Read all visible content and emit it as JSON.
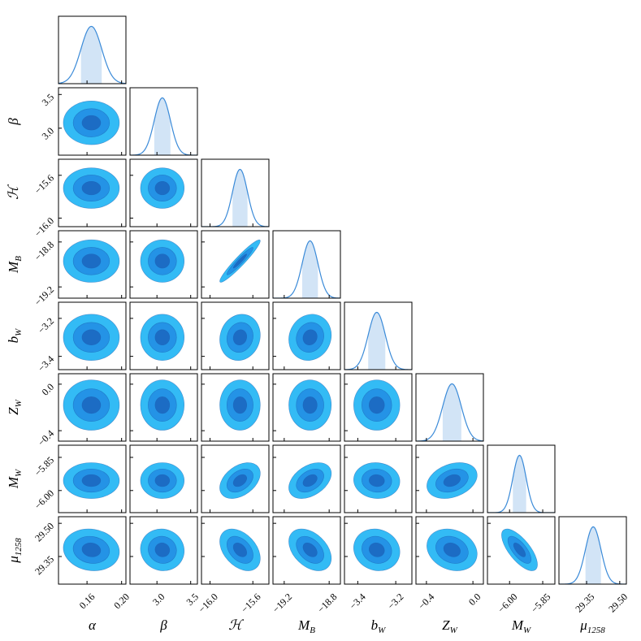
{
  "chart_data": {
    "type": "corner",
    "params": [
      {
        "label": "α",
        "xlim": [
          0.127,
          0.205
        ],
        "ticks": [
          0.16,
          {
            "value": 0.2,
            "label": "0.20"
          }
        ],
        "mean": 0.165,
        "sigma": 0.012
      },
      {
        "label": "β",
        "xlim": [
          2.6,
          3.6
        ],
        "ticks": [
          {
            "value": 3.0,
            "label": "3.0"
          },
          3.5
        ],
        "mean": 3.08,
        "sigma": 0.12
      },
      {
        "label": "ℋ",
        "xlim": [
          -16.08,
          -15.45
        ],
        "ticks": [
          {
            "value": -16.0,
            "label": "−16.0"
          },
          {
            "value": -15.6,
            "label": "−15.6"
          }
        ],
        "mean": -15.72,
        "sigma": 0.07
      },
      {
        "label": "M",
        "sub": "B",
        "xlim": [
          -19.3,
          -18.7
        ],
        "ticks": [
          {
            "value": -19.2,
            "label": "−19.2"
          },
          {
            "value": -18.8,
            "label": "−18.8"
          }
        ],
        "mean": -18.97,
        "sigma": 0.07
      },
      {
        "label": "b",
        "sub": "W",
        "xlim": [
          -3.47,
          -3.115
        ],
        "ticks": [
          {
            "value": -3.4,
            "label": "−3.4"
          },
          {
            "value": -3.2,
            "label": "−3.2"
          }
        ],
        "mean": -3.3,
        "sigma": 0.045
      },
      {
        "label": "Z",
        "sub": "W",
        "xlim": [
          -0.49,
          0.09
        ],
        "ticks": [
          {
            "value": -0.4,
            "label": "−0.4"
          },
          {
            "value": 0.0,
            "label": "0.0"
          }
        ],
        "mean": -0.18,
        "sigma": 0.08
      },
      {
        "label": "M",
        "sub": "W",
        "xlim": [
          -6.1,
          -5.795
        ],
        "ticks": [
          {
            "value": -6.0,
            "label": "−6.00"
          },
          {
            "value": -5.85,
            "label": "−5.85"
          }
        ],
        "mean": -5.955,
        "sigma": 0.03
      },
      {
        "label": "μ",
        "sub": "1258",
        "xlim": [
          29.225,
          29.53
        ],
        "ticks": [
          29.35,
          {
            "value": 29.5,
            "label": "29.50"
          }
        ],
        "mean": 29.38,
        "sigma": 0.035
      }
    ],
    "correlation": [
      [],
      [
        0.0
      ],
      [
        0.0,
        0.0
      ],
      [
        0.0,
        0.0,
        0.95
      ],
      [
        0.0,
        0.0,
        0.1,
        0.1
      ],
      [
        0.0,
        0.0,
        0.0,
        0.0,
        0.0
      ],
      [
        0.0,
        0.0,
        0.4,
        0.4,
        -0.05,
        0.3
      ],
      [
        -0.1,
        -0.05,
        -0.4,
        -0.4,
        -0.1,
        -0.2,
        -0.7
      ]
    ],
    "colors": [
      "#33bbf5",
      "#2493e6",
      "#1c6cc4"
    ],
    "line_color": "#3a8ad8",
    "band_color": "#d2e4f6"
  }
}
